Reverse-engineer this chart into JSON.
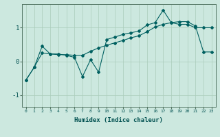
{
  "xlabel": "Humidex (Indice chaleur)",
  "bg_color": "#cce8df",
  "line_color": "#006060",
  "xlim": [
    -0.5,
    23.5
  ],
  "ylim": [
    -1.35,
    1.7
  ],
  "x_ticks": [
    0,
    1,
    2,
    3,
    4,
    5,
    6,
    7,
    8,
    9,
    10,
    11,
    12,
    13,
    14,
    15,
    16,
    17,
    18,
    19,
    20,
    21,
    22,
    23
  ],
  "y_ticks": [
    -1,
    0,
    1
  ],
  "series1_x": [
    0,
    1,
    2,
    3,
    4,
    5,
    6,
    7,
    8,
    9,
    10,
    11,
    12,
    13,
    14,
    15,
    16,
    17,
    18,
    19,
    20,
    21,
    22,
    23
  ],
  "series1_y": [
    -0.55,
    -0.18,
    0.45,
    0.22,
    0.22,
    0.18,
    0.12,
    -0.45,
    0.05,
    -0.32,
    0.65,
    0.72,
    0.8,
    0.85,
    0.9,
    1.08,
    1.15,
    1.52,
    1.15,
    1.1,
    1.1,
    1.0,
    1.0,
    1.0
  ],
  "series2_x": [
    0,
    1,
    2,
    3,
    4,
    5,
    6,
    7,
    8,
    9,
    10,
    11,
    12,
    13,
    14,
    15,
    16,
    17,
    18,
    19,
    20,
    21,
    22,
    23
  ],
  "series2_y": [
    -0.55,
    -0.18,
    0.25,
    0.22,
    0.2,
    0.2,
    0.18,
    0.18,
    0.3,
    0.4,
    0.48,
    0.55,
    0.62,
    0.7,
    0.76,
    0.88,
    1.02,
    1.1,
    1.15,
    1.18,
    1.18,
    1.05,
    0.28,
    0.28
  ],
  "grid_color": "#aaccbb",
  "tick_color": "#005050",
  "spine_color": "#557766"
}
